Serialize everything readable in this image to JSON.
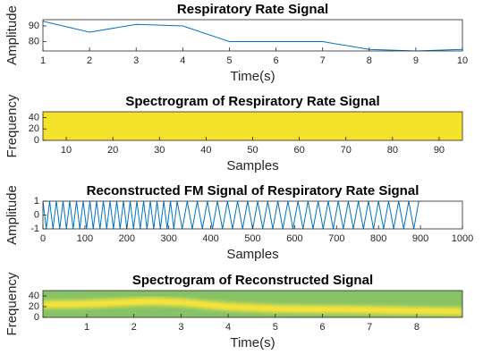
{
  "chart_data": [
    {
      "type": "line",
      "title": "Respiratory Rate Signal",
      "xlabel": "Time(s)",
      "ylabel": "Amplitude",
      "x": [
        1,
        2,
        3,
        4,
        5,
        6,
        7,
        8,
        9,
        10
      ],
      "values": [
        93,
        86,
        91,
        90,
        80,
        80,
        80,
        75,
        74,
        75
      ],
      "color": "#0072bd",
      "xlim": [
        1,
        10
      ],
      "ylim": [
        74,
        94
      ],
      "xticks": [
        1,
        2,
        3,
        4,
        5,
        6,
        7,
        8,
        9,
        10
      ],
      "yticks": [
        80,
        90
      ]
    },
    {
      "type": "heatmap",
      "title": "Spectrogram of Respiratory Rate Signal",
      "xlabel": "Samples",
      "ylabel": "Frequency",
      "color": "#f5e22a",
      "xlim": [
        5,
        95
      ],
      "ylim": [
        0,
        50
      ],
      "xticks": [
        10,
        20,
        30,
        40,
        50,
        60,
        70,
        80,
        90
      ],
      "yticks": [
        0,
        20,
        40
      ]
    },
    {
      "type": "line",
      "title": "Reconstructed FM Signal of Respiratory Rate Signal",
      "xlabel": "Samples",
      "ylabel": "Amplitude",
      "x": [
        0,
        8,
        16,
        24,
        32,
        40,
        48,
        56,
        64,
        72,
        80,
        88,
        96,
        104,
        112,
        120,
        128,
        136,
        144,
        152,
        160,
        168,
        176,
        184,
        192,
        200,
        208,
        216,
        224,
        232,
        240,
        248,
        256,
        264,
        272,
        280,
        288,
        296,
        304,
        312,
        320,
        332,
        344,
        356,
        368,
        380,
        392,
        404,
        416,
        428,
        440,
        452,
        464,
        476,
        488,
        500,
        512,
        524,
        536,
        548,
        560,
        572,
        584,
        596,
        608,
        620,
        632,
        644,
        656,
        668,
        680,
        692,
        704,
        716,
        728,
        740,
        752,
        764,
        776,
        788,
        800,
        812,
        824,
        836,
        848,
        860,
        872,
        884,
        896
      ],
      "values": [
        1,
        -1,
        1,
        -1,
        1,
        -1,
        1,
        -1,
        1,
        -1,
        1,
        -1,
        1,
        -1,
        1,
        -1,
        1,
        -1,
        1,
        -1,
        1,
        -1,
        1,
        -1,
        1,
        -1,
        1,
        -1,
        1,
        -1,
        1,
        -1,
        1,
        -1,
        1,
        -1,
        1,
        -1,
        1,
        -1,
        1,
        -1,
        1,
        -1,
        1,
        -1,
        1,
        -1,
        1,
        -1,
        1,
        -1,
        1,
        -1,
        1,
        -1,
        1,
        -1,
        1,
        -1,
        1,
        -1,
        1,
        -1,
        1,
        -1,
        1,
        -1,
        1,
        -1,
        1,
        -1,
        1,
        -1,
        1,
        -1,
        1,
        -1,
        1,
        -1,
        1,
        -1,
        1,
        -1,
        1,
        -1,
        1,
        -1,
        1
      ],
      "color": "#0072bd",
      "xlim": [
        0,
        1000
      ],
      "ylim": [
        -1,
        1
      ],
      "xticks": [
        0,
        100,
        200,
        300,
        400,
        500,
        600,
        700,
        800,
        900,
        1000
      ],
      "yticks": [
        -1,
        0,
        1
      ]
    },
    {
      "type": "spectrogram",
      "title": "Spectrogram of Reconstructed Signal",
      "xlabel": "Time(s)",
      "ylabel": "Frequency",
      "x": [
        0.07,
        1,
        2,
        2.5,
        3,
        4,
        5,
        6,
        7,
        8,
        8.97
      ],
      "values": [
        24,
        25,
        29,
        30,
        28,
        20,
        16,
        15,
        14,
        12,
        11
      ],
      "background": "#86c266",
      "color": "#f7e43a",
      "xlim": [
        0.07,
        8.97
      ],
      "ylim": [
        0,
        50
      ],
      "xticks": [
        1,
        2,
        3,
        4,
        5,
        6,
        7,
        8
      ],
      "yticks": [
        0,
        20,
        40
      ]
    }
  ]
}
